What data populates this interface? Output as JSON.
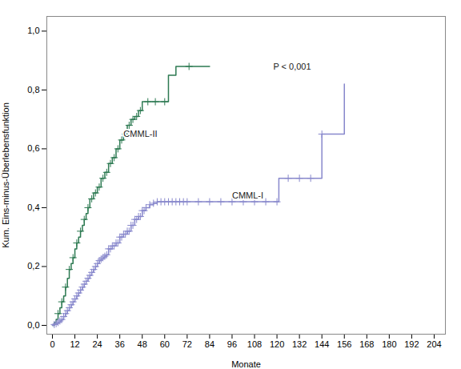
{
  "chart_data": {
    "type": "step",
    "xlabel": "Monate",
    "ylabel": "Kum. Eins-minus-Überlebensfunktion",
    "xlim": [
      -3,
      210
    ],
    "ylim": [
      -0.03,
      1.05
    ],
    "xticks": [
      0,
      12,
      24,
      36,
      48,
      60,
      72,
      84,
      96,
      108,
      120,
      132,
      144,
      156,
      168,
      180,
      192,
      204
    ],
    "yticks": [
      {
        "value": 0.0,
        "label": "0,0"
      },
      {
        "value": 0.2,
        "label": "0,2"
      },
      {
        "value": 0.4,
        "label": "0,4"
      },
      {
        "value": 0.6,
        "label": "0,6"
      },
      {
        "value": 0.8,
        "label": "0,8"
      },
      {
        "value": 1.0,
        "label": "1,0"
      }
    ],
    "grid": false,
    "series": [
      {
        "color": "#2d7a52",
        "marker": "plus",
        "x": [
          0,
          1,
          2,
          3,
          4,
          5,
          6,
          7,
          8,
          9,
          10,
          11,
          12,
          13,
          14,
          15,
          16,
          17,
          18,
          19,
          20,
          22,
          24,
          26,
          28,
          30,
          32,
          34,
          36,
          38,
          40,
          42,
          44,
          46,
          48,
          50,
          54,
          60,
          62,
          66,
          72,
          73,
          84
        ],
        "values": [
          0.0,
          0.01,
          0.02,
          0.04,
          0.06,
          0.08,
          0.1,
          0.13,
          0.16,
          0.19,
          0.21,
          0.23,
          0.26,
          0.28,
          0.3,
          0.32,
          0.34,
          0.36,
          0.38,
          0.4,
          0.43,
          0.45,
          0.47,
          0.5,
          0.52,
          0.55,
          0.57,
          0.6,
          0.63,
          0.65,
          0.68,
          0.7,
          0.71,
          0.73,
          0.76,
          0.76,
          0.76,
          0.76,
          0.85,
          0.88,
          0.88,
          0.88,
          0.88
        ],
        "censored_x": [
          3,
          5,
          7,
          9,
          11,
          13,
          15,
          17,
          19,
          21,
          23,
          25,
          27,
          29,
          31,
          33,
          35,
          37,
          39,
          41,
          43,
          45,
          47,
          51,
          55,
          60,
          73
        ],
        "censored_values": [
          0.04,
          0.08,
          0.13,
          0.19,
          0.23,
          0.28,
          0.32,
          0.36,
          0.4,
          0.43,
          0.45,
          0.47,
          0.5,
          0.52,
          0.55,
          0.57,
          0.6,
          0.63,
          0.65,
          0.68,
          0.7,
          0.71,
          0.73,
          0.76,
          0.76,
          0.76,
          0.88
        ]
      },
      {
        "color": "#8888cc",
        "marker": "plus",
        "x": [
          0,
          1,
          2,
          3,
          4,
          5,
          6,
          7,
          8,
          9,
          10,
          11,
          12,
          13,
          14,
          15,
          16,
          17,
          18,
          19,
          20,
          21,
          22,
          23,
          24,
          25,
          26,
          27,
          28,
          29,
          30,
          32,
          34,
          36,
          38,
          40,
          42,
          44,
          46,
          48,
          50,
          52,
          54,
          56,
          58,
          60,
          62,
          64,
          66,
          68,
          70,
          72,
          74,
          76,
          78,
          84,
          90,
          96,
          108,
          120,
          121,
          132,
          144,
          145,
          156
        ],
        "values": [
          0.0,
          0.003,
          0.006,
          0.01,
          0.015,
          0.02,
          0.03,
          0.04,
          0.05,
          0.06,
          0.07,
          0.08,
          0.09,
          0.1,
          0.11,
          0.12,
          0.13,
          0.14,
          0.15,
          0.16,
          0.17,
          0.18,
          0.19,
          0.2,
          0.21,
          0.22,
          0.225,
          0.23,
          0.235,
          0.24,
          0.26,
          0.27,
          0.28,
          0.3,
          0.31,
          0.32,
          0.34,
          0.36,
          0.37,
          0.39,
          0.4,
          0.41,
          0.415,
          0.42,
          0.42,
          0.42,
          0.42,
          0.42,
          0.42,
          0.42,
          0.42,
          0.42,
          0.42,
          0.42,
          0.42,
          0.42,
          0.42,
          0.42,
          0.42,
          0.42,
          0.5,
          0.5,
          0.65,
          0.65,
          0.82
        ],
        "censored_x": [
          1,
          2,
          3,
          4,
          5,
          6,
          7,
          8,
          9,
          10,
          11,
          12,
          13,
          14,
          15,
          16,
          17,
          18,
          19,
          20,
          21,
          22,
          23,
          24,
          25,
          26,
          27,
          28,
          29,
          30,
          31,
          32,
          33,
          34,
          35,
          36,
          37,
          38,
          39,
          40,
          41,
          42,
          43,
          44,
          45,
          46,
          47,
          48,
          49,
          50,
          52,
          54,
          56,
          58,
          60,
          62,
          64,
          66,
          68,
          70,
          72,
          78,
          84,
          90,
          96,
          102,
          108,
          114,
          120,
          126,
          132,
          138,
          144
        ],
        "censored_values": [
          0.003,
          0.006,
          0.01,
          0.015,
          0.02,
          0.03,
          0.04,
          0.05,
          0.06,
          0.07,
          0.08,
          0.09,
          0.1,
          0.11,
          0.12,
          0.13,
          0.14,
          0.15,
          0.16,
          0.17,
          0.18,
          0.19,
          0.2,
          0.21,
          0.22,
          0.225,
          0.23,
          0.235,
          0.24,
          0.26,
          0.26,
          0.27,
          0.27,
          0.28,
          0.28,
          0.3,
          0.3,
          0.31,
          0.31,
          0.32,
          0.32,
          0.34,
          0.34,
          0.36,
          0.36,
          0.37,
          0.37,
          0.39,
          0.39,
          0.4,
          0.41,
          0.415,
          0.42,
          0.42,
          0.42,
          0.42,
          0.42,
          0.42,
          0.42,
          0.42,
          0.42,
          0.42,
          0.42,
          0.42,
          0.42,
          0.42,
          0.42,
          0.42,
          0.42,
          0.5,
          0.5,
          0.5,
          0.65
        ]
      }
    ],
    "annotations": [
      {
        "text": "CMML-II",
        "x": 38,
        "y": 0.64
      },
      {
        "text": "CMML-I",
        "x": 96,
        "y": 0.43
      },
      {
        "text": "P < 0,001",
        "x": 118,
        "y": 0.87
      }
    ]
  }
}
